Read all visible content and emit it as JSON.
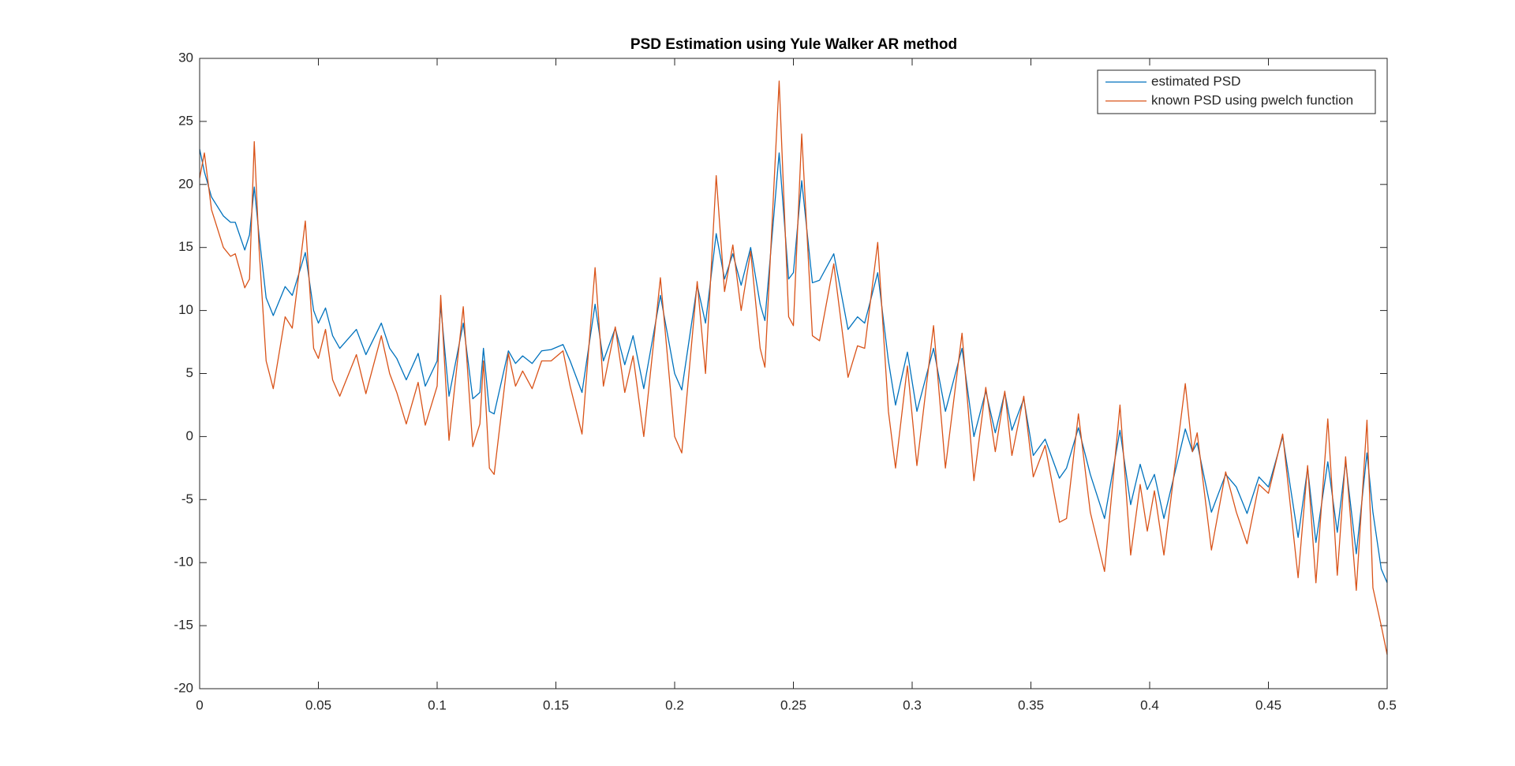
{
  "chart_data": {
    "type": "line",
    "title": "PSD Estimation using Yule Walker AR method",
    "x": [
      0,
      0.002,
      0.005,
      0.01,
      0.013,
      0.015,
      0.019,
      0.021,
      0.023,
      0.025,
      0.028,
      0.031,
      0.036,
      0.039,
      0.0445,
      0.048,
      0.05,
      0.053,
      0.056,
      0.059,
      0.066,
      0.07,
      0.0765,
      0.08,
      0.083,
      0.087,
      0.092,
      0.095,
      0.1,
      0.1015,
      0.105,
      0.111,
      0.115,
      0.118,
      0.1195,
      0.122,
      0.124,
      0.13,
      0.133,
      0.136,
      0.14,
      0.144,
      0.148,
      0.153,
      0.156,
      0.161,
      0.1665,
      0.17,
      0.175,
      0.179,
      0.1825,
      0.187,
      0.194,
      0.2,
      0.203,
      0.2095,
      0.213,
      0.2175,
      0.221,
      0.2245,
      0.228,
      0.232,
      0.236,
      0.238,
      0.244,
      0.248,
      0.25,
      0.2535,
      0.258,
      0.261,
      0.267,
      0.273,
      0.277,
      0.28,
      0.2855,
      0.29,
      0.293,
      0.298,
      0.302,
      0.309,
      0.314,
      0.321,
      0.326,
      0.331,
      0.335,
      0.339,
      0.342,
      0.347,
      0.351,
      0.356,
      0.362,
      0.365,
      0.37,
      0.375,
      0.381,
      0.3875,
      0.392,
      0.396,
      0.399,
      0.402,
      0.406,
      0.415,
      0.418,
      0.42,
      0.426,
      0.432,
      0.4365,
      0.441,
      0.446,
      0.45,
      0.456,
      0.4625,
      0.4665,
      0.47,
      0.475,
      0.479,
      0.4825,
      0.487,
      0.4915,
      0.494,
      0.4975,
      0.5
    ],
    "series": [
      {
        "name": "estimated PSD",
        "color": "#0072bd",
        "values": [
          22.8,
          21,
          19,
          17.5,
          17,
          17,
          14.8,
          16,
          19.8,
          16,
          11,
          9.6,
          11.9,
          11.2,
          14.6,
          10,
          9,
          10.2,
          8,
          7,
          8.5,
          6.5,
          9,
          7,
          6.2,
          4.5,
          6.6,
          4,
          6,
          10.4,
          3.2,
          9,
          3,
          3.5,
          7,
          2,
          1.8,
          6.8,
          5.8,
          6.4,
          5.8,
          6.8,
          6.9,
          7.3,
          6,
          3.5,
          10.5,
          6,
          8.6,
          5.7,
          8,
          3.8,
          11.2,
          5,
          3.7,
          12,
          9,
          16.1,
          12.5,
          14.5,
          12,
          15,
          10.5,
          9.2,
          22.5,
          12.5,
          13,
          20.3,
          12.2,
          12.4,
          14.5,
          8.5,
          9.5,
          9,
          13,
          6,
          2.5,
          6.7,
          2,
          7,
          2,
          7,
          0,
          3.6,
          0.3,
          3.5,
          0.5,
          3,
          -1.5,
          -0.2,
          -3.3,
          -2.5,
          0.7,
          -3,
          -6.5,
          0.5,
          -5.4,
          -2.2,
          -4.2,
          -3,
          -6.5,
          0.6,
          -1.2,
          -0.5,
          -6,
          -3,
          -4,
          -6.1,
          -3.2,
          -4,
          0,
          -8,
          -2.5,
          -8.4,
          -2,
          -7.6,
          -2,
          -9.3,
          -1.3,
          -6,
          -10.5,
          -11.6
        ]
      },
      {
        "name": "known PSD using pwelch function",
        "color": "#d95319",
        "values": [
          20.5,
          22.5,
          18,
          15,
          14.3,
          14.5,
          11.8,
          12.5,
          23.4,
          15,
          6,
          3.8,
          9.5,
          8.6,
          17.1,
          7,
          6.2,
          8.5,
          4.5,
          3.2,
          6.5,
          3.4,
          8,
          5,
          3.5,
          1,
          4.3,
          0.9,
          4,
          11.2,
          -0.3,
          10.3,
          -0.8,
          1,
          6,
          -2.5,
          -3,
          6.6,
          4,
          5.2,
          3.8,
          6,
          6,
          6.8,
          4,
          0.2,
          13.4,
          4,
          8.7,
          3.5,
          6.4,
          0,
          12.6,
          0,
          -1.3,
          12.3,
          5,
          20.7,
          11.5,
          15.2,
          10,
          14.7,
          7,
          5.5,
          28.2,
          9.5,
          8.8,
          24,
          8,
          7.6,
          13.7,
          4.7,
          7.2,
          7,
          15.4,
          2,
          -2.5,
          5.6,
          -2.3,
          8.8,
          -2.5,
          8.2,
          -3.5,
          3.9,
          -1.2,
          3.6,
          -1.5,
          3.2,
          -3.2,
          -0.7,
          -6.8,
          -6.5,
          1.8,
          -6,
          -10.7,
          2.5,
          -9.4,
          -3.8,
          -7.5,
          -4.3,
          -9.4,
          4.2,
          -1.2,
          0.3,
          -9,
          -2.8,
          -6,
          -8.5,
          -3.8,
          -4.5,
          0.2,
          -11.2,
          -2.3,
          -11.6,
          1.4,
          -11,
          -1.6,
          -12.2,
          1.3,
          -12,
          -15,
          -17.3
        ]
      }
    ],
    "xlim": [
      0,
      0.5
    ],
    "xticks": [
      0,
      0.05,
      0.1,
      0.15,
      0.2,
      0.25,
      0.3,
      0.35,
      0.4,
      0.45,
      0.5
    ],
    "ylim": [
      -20,
      30
    ],
    "yticks": [
      -20,
      -15,
      -10,
      -5,
      0,
      5,
      10,
      15,
      20,
      25,
      30
    ],
    "grid": false,
    "legend": "upper right"
  }
}
